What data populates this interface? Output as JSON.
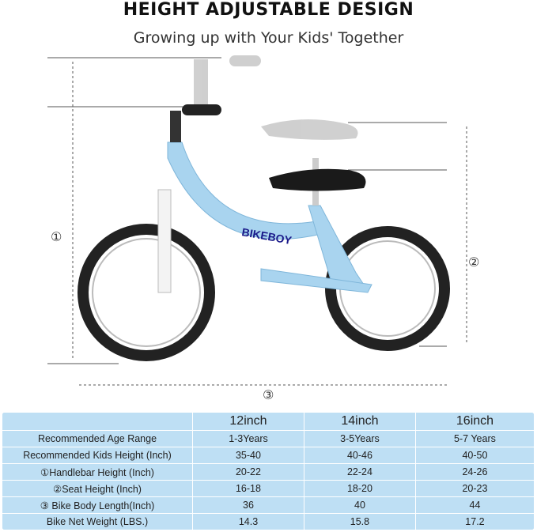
{
  "title": "HEIGHT ADJUSTABLE DESIGN",
  "subtitle": "Growing up with Your Kids' Together",
  "markers": [
    "①",
    "②",
    "③"
  ],
  "logo": "BIKEBOY",
  "table": {
    "headers": [
      "",
      "12inch",
      "14inch",
      "16inch"
    ],
    "rows": [
      [
        "Recommended Age Range",
        "1-3Years",
        "3-5Years",
        "5-7 Years"
      ],
      [
        "Recommended Kids Height (Inch)",
        "35-40",
        "40-46",
        "40-50"
      ],
      [
        "①Handlebar Height (Inch)",
        "20-22",
        "22-24",
        "24-26"
      ],
      [
        "②Seat Height (Inch)",
        "16-18",
        "18-20",
        "20-23"
      ],
      [
        "③ Bike Body Length(Inch)",
        "36",
        "40",
        "44"
      ],
      [
        "Bike Net Weight (LBS.)",
        "14.3",
        "15.8",
        "17.2"
      ]
    ]
  },
  "colors": {
    "frame": "#a9d4ef",
    "table": "#bedff4"
  }
}
